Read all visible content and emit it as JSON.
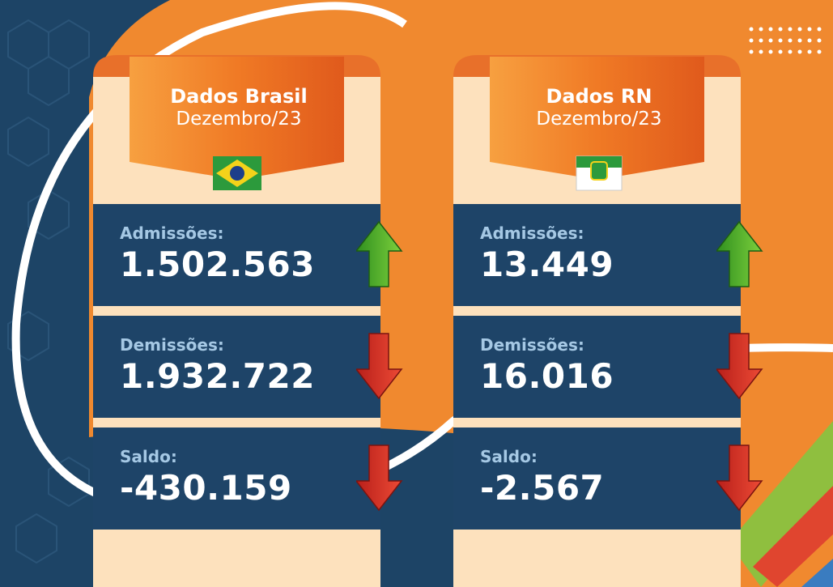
{
  "panels": [
    {
      "title": "Dados Brasil",
      "subtitle": "Dezembro/23",
      "rows": [
        {
          "label": "Admissões:",
          "value": "1.502.563"
        },
        {
          "label": "Demissões:",
          "value": "1.932.722"
        },
        {
          "label": "Saldo:",
          "value": "-430.159"
        }
      ]
    },
    {
      "title": "Dados RN",
      "subtitle": "Dezembro/23",
      "rows": [
        {
          "label": "Admissões:",
          "value": "13.449"
        },
        {
          "label": "Demissões:",
          "value": "16.016"
        },
        {
          "label": "Saldo:",
          "value": "-2.567"
        }
      ]
    }
  ]
}
